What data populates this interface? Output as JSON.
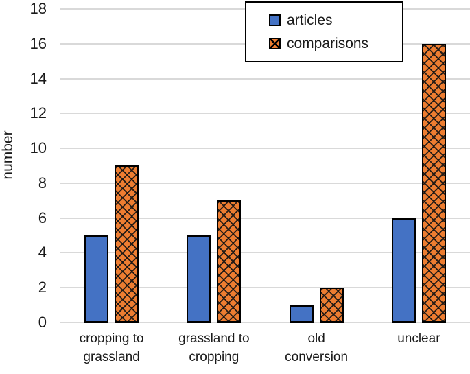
{
  "chart_data": {
    "type": "bar",
    "title": "",
    "xlabel": "",
    "ylabel": "number",
    "categories": [
      "cropping to\ngrassland",
      "grassland to\ncropping",
      "old\nconversion",
      "unclear"
    ],
    "series": [
      {
        "name": "articles",
        "values": [
          5,
          5,
          1,
          6
        ],
        "color": "#4472C4",
        "pattern": "solid"
      },
      {
        "name": "comparisons",
        "values": [
          9,
          7,
          2,
          16
        ],
        "color": "#ED7D31",
        "pattern": "crosshatch"
      }
    ],
    "ylim": [
      0,
      18
    ],
    "ytick_step": 2,
    "ytick_labels": [
      "0",
      "2",
      "4",
      "6",
      "8",
      "10",
      "12",
      "14",
      "16",
      "18"
    ],
    "grid": true,
    "legend_position": "top-center",
    "bar_border_color": "#000000",
    "gridline_color": "#d9d9d9",
    "text_color": "#1a1a1a",
    "background_color": "#ffffff"
  }
}
